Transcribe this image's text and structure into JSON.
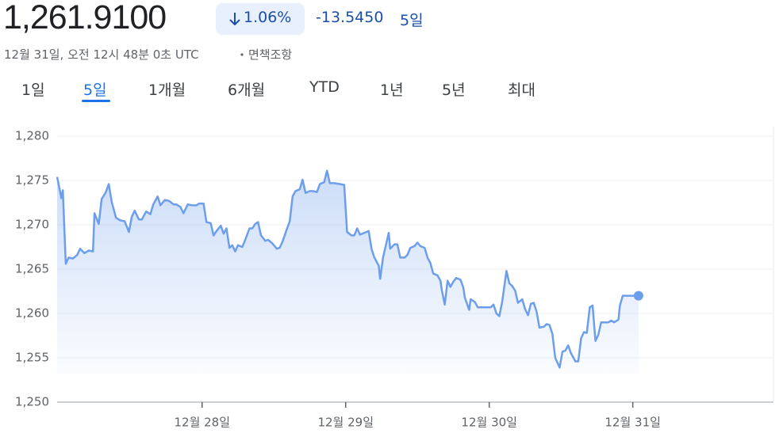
{
  "header": {
    "price": "1,261.9100",
    "change_percent": "1.06%",
    "change": "-13.5450",
    "period": "5일",
    "timestamp": "12월 31일, 오전 12시 48분 0초 UTC",
    "disclaimer": "면책조항"
  },
  "tabs": [
    {
      "label": "1일"
    },
    {
      "label": "5일",
      "selected": true
    },
    {
      "label": "1개월"
    },
    {
      "label": "6개월"
    },
    {
      "label": "YTD"
    },
    {
      "label": "1년"
    },
    {
      "label": "5년"
    },
    {
      "label": "최대"
    }
  ],
  "chart_data": {
    "type": "line",
    "color": "#6d9eeb",
    "grid": true,
    "x": [
      26.99,
      27.02,
      27.03,
      27.05,
      27.07,
      27.1,
      27.13,
      27.15,
      27.18,
      27.21,
      27.24,
      27.25,
      27.28,
      27.3,
      27.33,
      27.35,
      27.37,
      27.4,
      27.43,
      27.46,
      27.49,
      27.51,
      27.53,
      27.56,
      27.58,
      27.61,
      27.64,
      27.66,
      27.69,
      27.71,
      27.74,
      27.77,
      27.8,
      27.82,
      27.85,
      27.87,
      27.9,
      27.93,
      27.96,
      27.98,
      28.01,
      28.03,
      28.06,
      28.08,
      28.1,
      28.13,
      28.15,
      28.17,
      28.19,
      28.21,
      28.23,
      28.25,
      28.28,
      28.3,
      28.33,
      28.35,
      28.37,
      28.39,
      28.41,
      28.44,
      28.46,
      28.49,
      28.52,
      28.54,
      28.56,
      28.59,
      28.61,
      28.63,
      28.65,
      28.68,
      28.7,
      28.72,
      28.75,
      28.77,
      28.8,
      28.82,
      28.85,
      28.87,
      28.89,
      28.92,
      28.96,
      28.99,
      29.01,
      29.04,
      29.06,
      29.08,
      29.1,
      29.13,
      29.16,
      29.18,
      29.2,
      29.23,
      29.24,
      29.26,
      29.28,
      29.3,
      29.31,
      29.34,
      29.36,
      29.38,
      29.41,
      29.43,
      29.45,
      29.48,
      29.5,
      29.52,
      29.55,
      29.57,
      29.59,
      29.61,
      29.64,
      29.66,
      29.67,
      29.69,
      29.71,
      29.73,
      29.75,
      29.77,
      29.8,
      29.82,
      29.83,
      29.86,
      29.87,
      29.9,
      29.92,
      29.94,
      29.96,
      29.98,
      30.01,
      30.03,
      30.05,
      30.07,
      30.09,
      30.12,
      30.14,
      30.16,
      30.18,
      30.2,
      30.23,
      30.25,
      30.27,
      30.29,
      30.31,
      30.33,
      30.35,
      30.38,
      30.4,
      30.42,
      30.44,
      30.46,
      30.49,
      30.51,
      30.53,
      30.55,
      30.57,
      30.6,
      30.62,
      30.64,
      30.66,
      30.68,
      30.7,
      30.72,
      30.74,
      30.76,
      30.78,
      30.81,
      30.83,
      30.85,
      30.87,
      30.9,
      30.91,
      30.93,
      30.97,
      31.0,
      31.04
    ],
    "values": [
      1275.4,
      1273.0,
      1273.9,
      1265.6,
      1266.3,
      1266.2,
      1266.6,
      1267.3,
      1266.8,
      1267.1,
      1267.0,
      1271.3,
      1270.1,
      1272.9,
      1273.7,
      1274.6,
      1272.6,
      1270.8,
      1270.5,
      1270.4,
      1269.2,
      1270.9,
      1271.6,
      1270.6,
      1270.6,
      1271.5,
      1271.2,
      1272.3,
      1273.2,
      1272.2,
      1272.8,
      1272.7,
      1272.3,
      1272.3,
      1272.0,
      1271.3,
      1272.3,
      1272.2,
      1272.2,
      1272.4,
      1272.4,
      1270.3,
      1270.2,
      1268.8,
      1269.3,
      1269.9,
      1269.0,
      1269.6,
      1267.4,
      1267.7,
      1267.0,
      1267.7,
      1267.5,
      1268.3,
      1269.6,
      1269.6,
      1270.1,
      1270.3,
      1268.8,
      1268.2,
      1268.3,
      1267.9,
      1267.3,
      1267.4,
      1268.1,
      1269.5,
      1270.4,
      1273.2,
      1273.8,
      1274.0,
      1275.1,
      1273.6,
      1273.8,
      1273.8,
      1273.7,
      1274.6,
      1274.8,
      1276.1,
      1274.7,
      1274.7,
      1274.6,
      1274.5,
      1269.2,
      1268.8,
      1268.8,
      1269.6,
      1268.9,
      1269.1,
      1269.3,
      1267.3,
      1266.3,
      1265.4,
      1263.9,
      1266.3,
      1267.7,
      1269.1,
      1267.3,
      1267.8,
      1267.8,
      1266.3,
      1266.3,
      1266.6,
      1267.4,
      1267.6,
      1268.0,
      1267.6,
      1267.4,
      1266.3,
      1265.7,
      1264.5,
      1264.3,
      1263.7,
      1262.6,
      1261.0,
      1263.7,
      1263.0,
      1263.6,
      1264.0,
      1263.8,
      1262.9,
      1261.8,
      1260.4,
      1261.6,
      1261.3,
      1260.7,
      1260.7,
      1260.7,
      1260.7,
      1260.7,
      1261.0,
      1260.0,
      1259.7,
      1261.3,
      1264.8,
      1263.4,
      1263.1,
      1262.6,
      1261.2,
      1261.6,
      1260.5,
      1259.8,
      1261.1,
      1261.2,
      1260.2,
      1258.4,
      1258.5,
      1258.8,
      1258.7,
      1257.7,
      1255.0,
      1253.9,
      1255.7,
      1255.8,
      1256.4,
      1255.5,
      1254.6,
      1254.6,
      1257.2,
      1257.9,
      1257.8,
      1260.7,
      1260.9,
      1256.9,
      1257.6,
      1259.0,
      1259.0,
      1259.0,
      1259.2,
      1259.0,
      1259.3,
      1260.9,
      1262.0,
      1262.0,
      1262.0,
      1262.0
    ],
    "xlim": [
      26.99,
      31.98
    ],
    "xticks": [
      {
        "value": 28,
        "label": "12월 28일"
      },
      {
        "value": 29,
        "label": "12월 29일"
      },
      {
        "value": 30,
        "label": "12월 30일"
      },
      {
        "value": 31,
        "label": "12월 31일"
      }
    ],
    "ylim": [
      1250,
      1280
    ],
    "yticks": [
      {
        "value": 1250,
        "label": "1,250"
      },
      {
        "value": 1255,
        "label": "1,255"
      },
      {
        "value": 1260,
        "label": "1,260"
      },
      {
        "value": 1265,
        "label": "1,265"
      },
      {
        "value": 1270,
        "label": "1,270"
      },
      {
        "value": 1275,
        "label": "1,275"
      },
      {
        "value": 1280,
        "label": "1,280"
      }
    ]
  }
}
